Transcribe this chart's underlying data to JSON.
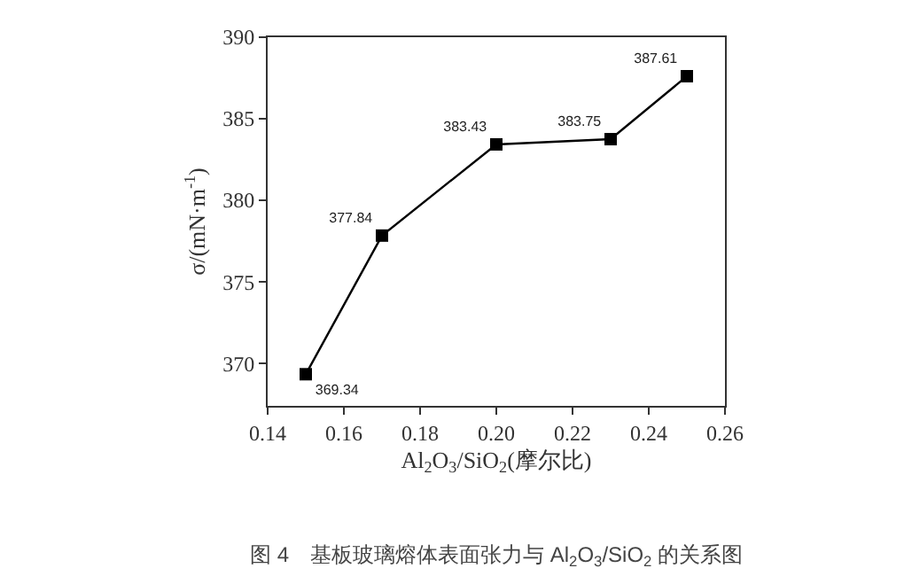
{
  "chart_data": {
    "type": "line",
    "xlabel": "Al$_{2}$O$_{3}$/SiO$_{2}$(摩尔比)",
    "ylabel": "σ/(mN·m$^{-1}$)",
    "x": [
      0.15,
      0.17,
      0.2,
      0.23,
      0.25
    ],
    "series": [
      {
        "color": "#000000",
        "values": [
          369.34,
          377.84,
          383.43,
          383.75,
          387.61
        ]
      }
    ],
    "xlim": [
      0.14,
      0.26
    ],
    "xticks": [
      {
        "value": 0.14,
        "label": "0.14"
      },
      {
        "value": 0.16,
        "label": "0.16"
      },
      {
        "value": 0.18,
        "label": "0.18"
      },
      {
        "value": 0.2,
        "label": "0.20"
      },
      {
        "value": 0.22,
        "label": "0.22"
      },
      {
        "value": 0.24,
        "label": "0.24"
      },
      {
        "value": 0.26,
        "label": "0.26"
      }
    ],
    "ylim": [
      367.4,
      390
    ],
    "yticks": [
      370,
      375,
      380,
      385,
      390
    ],
    "marker": "square",
    "line_style": "solid",
    "data_labels": true,
    "annotations": [
      "图 4　基板玻璃熔体表面张力与 Al$_{2}$O$_{3}$/SiO$_{2}$ 的关系图"
    ]
  }
}
